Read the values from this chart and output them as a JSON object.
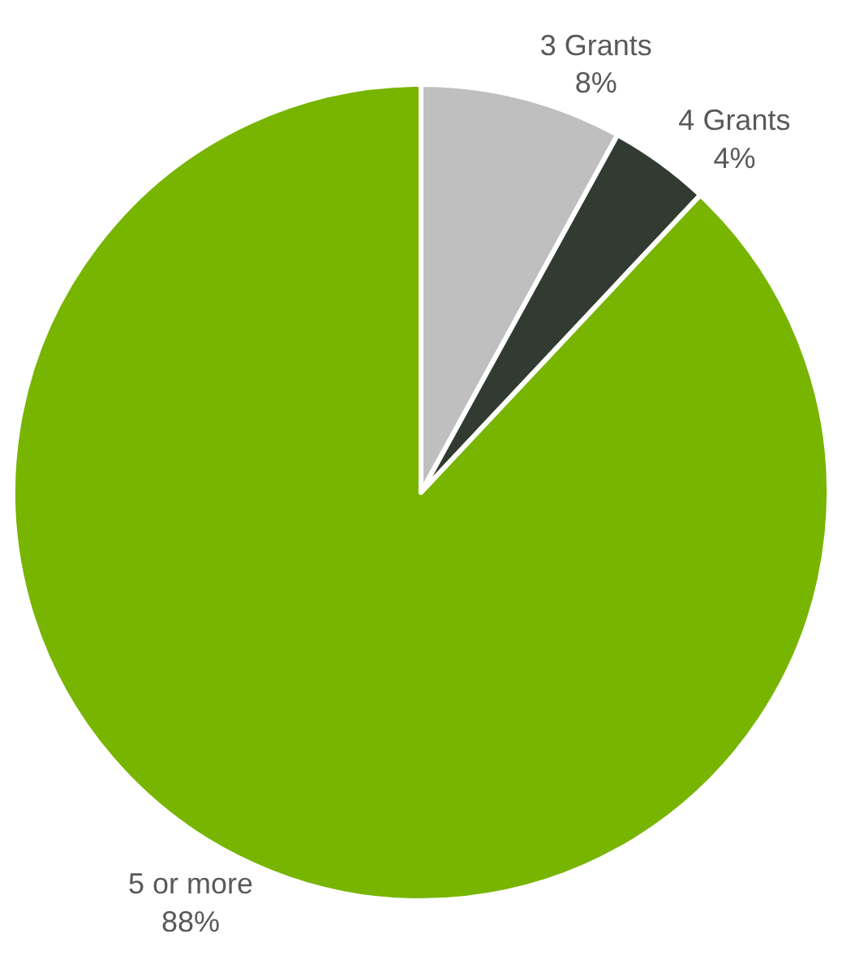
{
  "chart_data": {
    "type": "pie",
    "categories": [
      "3 Grants",
      "4 Grants",
      "5 or more"
    ],
    "values": [
      8,
      4,
      88
    ],
    "colors": [
      "#bfbfbf",
      "#323b32",
      "#77b500"
    ],
    "value_labels": [
      "8%",
      "4%",
      "88%"
    ],
    "legend": false
  }
}
